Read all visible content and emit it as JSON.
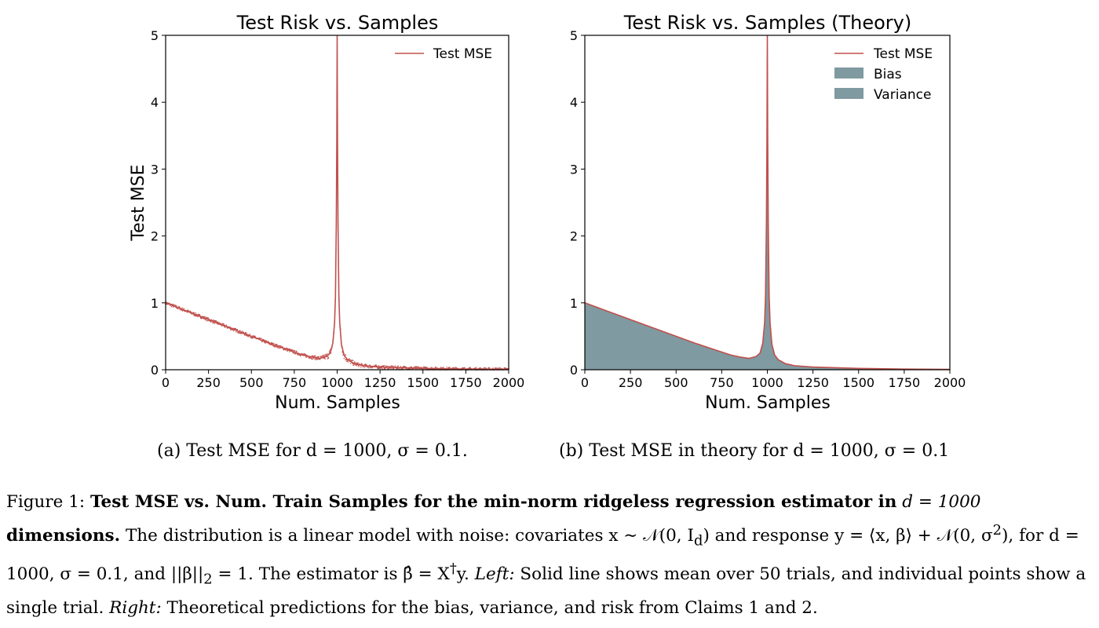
{
  "colors": {
    "line": "#c0504d",
    "fill": "#7f9aa0",
    "scatter": "#c0504d"
  },
  "chart_data": [
    {
      "type": "scatter",
      "title": "Test Risk vs. Samples",
      "xlabel": "Num. Samples",
      "ylabel": "Test MSE",
      "xlim": [
        0,
        2000
      ],
      "ylim": [
        0,
        5
      ],
      "xticks": [
        "0",
        "250",
        "500",
        "750",
        "1000",
        "1250",
        "1500",
        "1750",
        "2000"
      ],
      "yticks": [
        "0",
        "1",
        "2",
        "3",
        "4",
        "5"
      ],
      "legend": {
        "placement": "top-right",
        "entries": [
          "Test MSE"
        ]
      },
      "grid": false,
      "series": [
        {
          "name": "Test MSE",
          "style": "line",
          "description": "mean over trials",
          "x": [
            0,
            100,
            200,
            300,
            400,
            500,
            600,
            700,
            800,
            850,
            900,
            940,
            960,
            975,
            985,
            990,
            995,
            998,
            1000,
            1002,
            1005,
            1010,
            1015,
            1025,
            1040,
            1060,
            1100,
            1150,
            1250,
            1500,
            1750,
            2000
          ],
          "y": [
            1.0,
            0.9,
            0.8,
            0.7,
            0.6,
            0.5,
            0.4,
            0.31,
            0.22,
            0.19,
            0.17,
            0.2,
            0.25,
            0.4,
            0.7,
            1.1,
            2.2,
            3.5,
            5.0,
            3.5,
            2.2,
            1.1,
            0.7,
            0.38,
            0.22,
            0.15,
            0.09,
            0.06,
            0.04,
            0.02,
            0.01,
            0.005
          ]
        }
      ]
    },
    {
      "type": "area",
      "title": "Test Risk vs. Samples (Theory)",
      "xlabel": "Num. Samples",
      "ylabel": "",
      "xlim": [
        0,
        2000
      ],
      "ylim": [
        0,
        5
      ],
      "xticks": [
        "0",
        "250",
        "500",
        "750",
        "1000",
        "1250",
        "1500",
        "1750",
        "2000"
      ],
      "yticks": [
        "0",
        "1",
        "2",
        "3",
        "4",
        "5"
      ],
      "legend": {
        "placement": "top-right",
        "entries": [
          "Test MSE",
          "Bias",
          "Variance"
        ]
      },
      "grid": false,
      "series": [
        {
          "name": "Test MSE",
          "style": "line",
          "x": [
            0,
            100,
            200,
            300,
            400,
            500,
            600,
            700,
            800,
            850,
            900,
            940,
            960,
            975,
            985,
            990,
            995,
            998,
            1000,
            1002,
            1005,
            1010,
            1015,
            1025,
            1040,
            1060,
            1100,
            1150,
            1250,
            1500,
            1750,
            2000
          ],
          "y": [
            1.0,
            0.9,
            0.8,
            0.7,
            0.6,
            0.5,
            0.4,
            0.31,
            0.22,
            0.19,
            0.17,
            0.2,
            0.25,
            0.4,
            0.7,
            1.1,
            2.2,
            3.5,
            5.0,
            3.5,
            2.2,
            1.1,
            0.7,
            0.38,
            0.22,
            0.15,
            0.09,
            0.06,
            0.04,
            0.02,
            0.01,
            0.005
          ]
        },
        {
          "name": "Bias",
          "style": "area",
          "x": [
            0,
            250,
            500,
            750,
            900,
            1000,
            1250,
            1500,
            2000
          ],
          "y": [
            1.0,
            0.75,
            0.5,
            0.25,
            0.1,
            0.0,
            0.0,
            0.0,
            0.0
          ]
        },
        {
          "name": "Variance",
          "style": "area",
          "x": [
            0,
            100,
            200,
            300,
            400,
            500,
            600,
            700,
            800,
            850,
            900,
            940,
            960,
            975,
            985,
            990,
            995,
            998,
            1000,
            1002,
            1005,
            1010,
            1015,
            1025,
            1040,
            1060,
            1100,
            1150,
            1250,
            1500,
            1750,
            2000
          ],
          "y": [
            1.0,
            0.9,
            0.8,
            0.7,
            0.6,
            0.5,
            0.4,
            0.31,
            0.22,
            0.19,
            0.17,
            0.2,
            0.25,
            0.4,
            0.7,
            1.1,
            2.2,
            3.5,
            5.0,
            3.5,
            2.2,
            1.1,
            0.7,
            0.38,
            0.22,
            0.15,
            0.09,
            0.06,
            0.04,
            0.02,
            0.01,
            0.005
          ]
        }
      ]
    }
  ],
  "subcaptions": {
    "a": "(a) Test MSE for d = 1000, σ = 0.1.",
    "b": "(b) Test MSE in theory for d = 1000, σ = 0.1"
  },
  "caption": {
    "label": "Figure 1:",
    "bold1": "Test MSE vs. Num. Train Samples for the min-norm ridgeless regression estimator in",
    "d_expr": "d = 1000",
    "bold2": "dimensions.",
    "text1": "The distribution is a linear model with noise: covariates x ∼ 𝒩(0, I",
    "sub_d": "d",
    "text2": ") and response y = ⟨x, β⟩ + 𝒩(0, σ",
    "sup_2": "2",
    "text3": "), for d = 1000, σ = 0.1, and ||β||",
    "sub_2": "2",
    "text4": " = 1. The estimator is β̂ = X",
    "sup_dagger": "†",
    "text5": "y.",
    "left_label": "Left:",
    "text6": "Solid line shows mean over 50 trials, and individual points show a single trial.",
    "right_label": "Right:",
    "text7": "Theoretical predictions for the bias, variance, and risk from Claims 1 and 2."
  }
}
